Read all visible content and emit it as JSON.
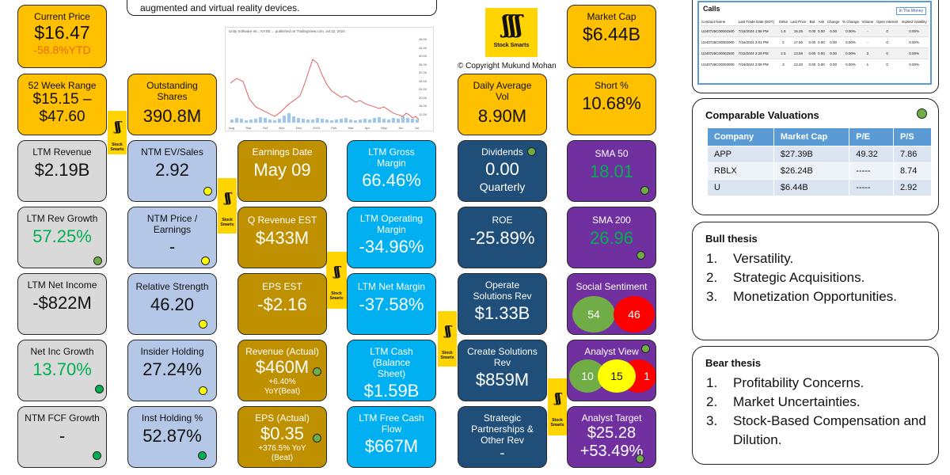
{
  "header_text": "augmented and virtual reality devices.",
  "copyright": "© Copyright Mukund Mohan",
  "logo_text": "Stock Smarts",
  "tiles": {
    "current_price": {
      "label": "Current Price",
      "value": "$16.47",
      "sub": "-58.8%YTD"
    },
    "week52": {
      "label": "52 Week Range",
      "value": "$15.15 –",
      "value2": "$47.60"
    },
    "outstanding": {
      "label": "Outstanding Shares",
      "value": "390.8M"
    },
    "daily_vol": {
      "label": "Daily Average Vol",
      "value": "8.90M"
    },
    "market_cap": {
      "label": "Market Cap",
      "value": "$6.44B"
    },
    "short": {
      "label": "Short %",
      "value": "10.68%"
    },
    "ltm_revenue": {
      "label": "LTM Revenue",
      "value": "$2.19B"
    },
    "ntm_ev_sales": {
      "label": "NTM EV/Sales",
      "value": "2.92"
    },
    "earnings_date": {
      "label": "Earnings Date",
      "value": "May 09"
    },
    "ltm_gross": {
      "label": "LTM Gross Margin",
      "value": "66.46%"
    },
    "dividends": {
      "label": "Dividends",
      "value": "0.00",
      "sub": "Quarterly"
    },
    "sma50": {
      "label": "SMA 50",
      "value": "18.01"
    },
    "ltm_rev_growth": {
      "label": "LTM Rev Growth",
      "value": "57.25%"
    },
    "ntm_pe": {
      "label": "NTM Price / Earnings",
      "value": "-"
    },
    "q_rev_est": {
      "label": "Q Revenue EST",
      "value": "$433M"
    },
    "ltm_op": {
      "label": "LTM Operating Margin",
      "value": "-34.96%"
    },
    "roe": {
      "label": "ROE",
      "value": "-25.89%"
    },
    "sma200": {
      "label": "SMA 200",
      "value": "26.96"
    },
    "ltm_net_income": {
      "label": "LTM Net Income",
      "value": "-$822M"
    },
    "rel_strength": {
      "label": "Relative Strength",
      "value": "46.20"
    },
    "eps_est": {
      "label": "EPS EST",
      "value": "-$2.16"
    },
    "ltm_net_margin": {
      "label": "LTM Net Margin",
      "value": "-37.58%"
    },
    "operate_rev": {
      "label": "Operate Solutions Rev",
      "value": "$1.33B"
    },
    "social": {
      "label": "Social Sentiment",
      "pos": "54",
      "neg": "46"
    },
    "net_inc_growth": {
      "label": "Net Inc Growth",
      "value": "13.70%"
    },
    "insider": {
      "label": "Insider Holding",
      "value": "27.24%"
    },
    "rev_actual": {
      "label": "Revenue (Actual)",
      "value": "$460M",
      "sub": "+6.40% YoY(Beat)"
    },
    "ltm_cash": {
      "label": "LTM Cash (Balance Sheet)",
      "value": "$1.59B"
    },
    "create_rev": {
      "label": "Create Solutions Rev",
      "value": "$859M"
    },
    "analyst_view": {
      "label": "Analyst View",
      "buy": "10",
      "hold": "15",
      "sell": "1"
    },
    "ntm_fcf": {
      "label": "NTM FCF Growth",
      "value": "-"
    },
    "inst_holding": {
      "label": "Inst Holding %",
      "value": "52.87%"
    },
    "eps_actual": {
      "label": "EPS (Actual)",
      "value": "$0.35",
      "sub": "+376.5% YoY (Beat)"
    },
    "ltm_fcf": {
      "label": "LTM Free Cash Flow",
      "value": "$667M"
    },
    "strategic": {
      "label": "Strategic Partnerships & Other Rev",
      "value": "-"
    },
    "analyst_target": {
      "label": "Analyst Target",
      "value": "$25.28",
      "sub": "+53.49%"
    }
  },
  "price_chart": {
    "header": "Unity Software Inc., NYSE ... published on TradingView.com, Jul 22, 2024",
    "x_labels": [
      "Aug",
      "Sep",
      "Oct",
      "Nov",
      "Dec",
      "2024",
      "Feb",
      "Mar",
      "Apr",
      "May",
      "Jun",
      "Jul"
    ],
    "y_labels": [
      "48.00",
      "44.00",
      "40.00",
      "36.00",
      "32.00",
      "28.00",
      "24.00",
      "20.00",
      "16.00",
      "12.00"
    ]
  },
  "calls": {
    "title": "Calls",
    "badge": "In The Money",
    "columns": [
      "Contract Name",
      "Last Trade Date (EDT)",
      "Strike",
      "Last Price",
      "Bid",
      "Ask",
      "Change",
      "% Change",
      "Volume",
      "Open Interest",
      "Implied Volatility"
    ],
    "rows": [
      [
        "U240726C00001500",
        "7/16/2024 1:58 PM",
        "1.5",
        "16.25",
        "0.00",
        "0.00",
        "0.00",
        "0.00%",
        "-",
        "0",
        "0.00%"
      ],
      [
        "U240726C00002000",
        "7/16/2024 2:01 PM",
        "2",
        "17.50",
        "0.00",
        "0.00",
        "0.00",
        "0.00%",
        "-",
        "0",
        "0.00%"
      ],
      [
        "U240726C00002500",
        "7/22/2024 2:29 PM",
        "2.5",
        "13.58",
        "0.00",
        "0.00",
        "0.00",
        "0.00%",
        "3",
        "0",
        "0.00%"
      ],
      [
        "U240726C00003000",
        "7/19/2024 2:08 PM",
        "3",
        "13.20",
        "0.00",
        "0.00",
        "0.00",
        "0.00%",
        "1",
        "0",
        "0.00%"
      ]
    ]
  },
  "comparable": {
    "title": "Comparable Valuations",
    "columns": [
      "Company",
      "Market Cap",
      "P/E",
      "P/S"
    ],
    "rows": [
      [
        "APP",
        "$27.39B",
        "49.32",
        "7.86"
      ],
      [
        "RBLX",
        "$26.24B",
        "-----",
        "8.74"
      ],
      [
        "U",
        "$6.44B",
        "-----",
        "2.92"
      ]
    ]
  },
  "bull": {
    "title": "Bull thesis",
    "items": [
      {
        "n": "1.",
        "t": "Versatility."
      },
      {
        "n": "2.",
        "t": "Strategic Acquisitions."
      },
      {
        "n": "3.",
        "t": "Monetization Opportunities."
      }
    ]
  },
  "bear": {
    "title": "Bear thesis",
    "items": [
      {
        "n": "1.",
        "t": "Profitability Concerns."
      },
      {
        "n": "2.",
        "t": "Market Uncertainties."
      },
      {
        "n": "3.",
        "t": "Stock-Based Compensation and Dilution."
      }
    ]
  },
  "colors": {
    "orange": "#ffc000",
    "grey": "#d9d9d9",
    "light_blue": "#b4c7e7",
    "gold": "#bf9000",
    "cyan": "#00b0f0",
    "navy": "#1f4e79",
    "purple": "#7030a0",
    "positive": "#00b050",
    "negative": "#ff3b30"
  }
}
